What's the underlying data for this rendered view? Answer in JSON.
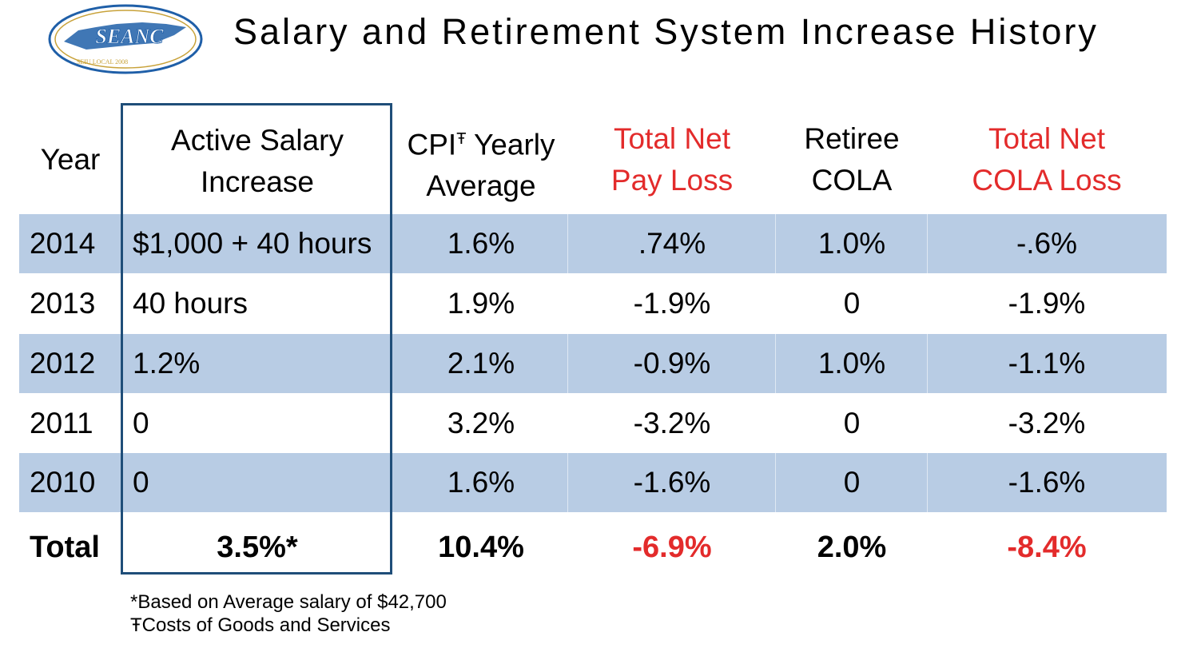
{
  "logo": {
    "text": "SEANC",
    "subtext": "SEIU LOCAL 2008"
  },
  "title": "Salary and Retirement System Increase History",
  "headers": {
    "year": "Year",
    "active_salary_line1": "Active Salary",
    "active_salary_line2": "Increase",
    "cpi_line1_a": "CPI",
    "cpi_mark": "Ŧ",
    "cpi_line1_b": " Yearly",
    "cpi_line2": "Average",
    "net_pay_line1": "Total Net",
    "net_pay_line2": "Pay Loss",
    "cola_line1": "Retiree",
    "cola_line2": "COLA",
    "net_cola_line1": "Total Net",
    "net_cola_line2": "COLA Loss"
  },
  "rows": [
    {
      "year": "2014",
      "salary": "$1,000 + 40 hours",
      "cpi": "1.6%",
      "net_pay": ".74%",
      "cola": "1.0%",
      "net_cola": "-.6%"
    },
    {
      "year": "2013",
      "salary": "40 hours",
      "cpi": "1.9%",
      "net_pay": "-1.9%",
      "cola": "0",
      "net_cola": "-1.9%"
    },
    {
      "year": "2012",
      "salary": "1.2%",
      "cpi": "2.1%",
      "net_pay": "-0.9%",
      "cola": "1.0%",
      "net_cola": "-1.1%"
    },
    {
      "year": "2011",
      "salary": "0",
      "cpi": "3.2%",
      "net_pay": "-3.2%",
      "cola": "0",
      "net_cola": "-3.2%"
    },
    {
      "year": "2010",
      "salary": "0",
      "cpi": "1.6%",
      "net_pay": "-1.6%",
      "cola": "0",
      "net_cola": "-1.6%"
    }
  ],
  "totals": {
    "label": "Total",
    "salary": "3.5%*",
    "cpi": "10.4%",
    "net_pay": "-6.9%",
    "cola": "2.0%",
    "net_cola": "-8.4%"
  },
  "footnotes": {
    "salary_note": "*Based on Average salary of $42,700",
    "cpi_note": "ŦCosts of Goods and Services"
  },
  "colors": {
    "band": "#b8cce4",
    "frame": "#1f4e79",
    "red": "#e32b2b",
    "logo_blue": "#1f5fa8",
    "logo_gold": "#c8a23a"
  }
}
